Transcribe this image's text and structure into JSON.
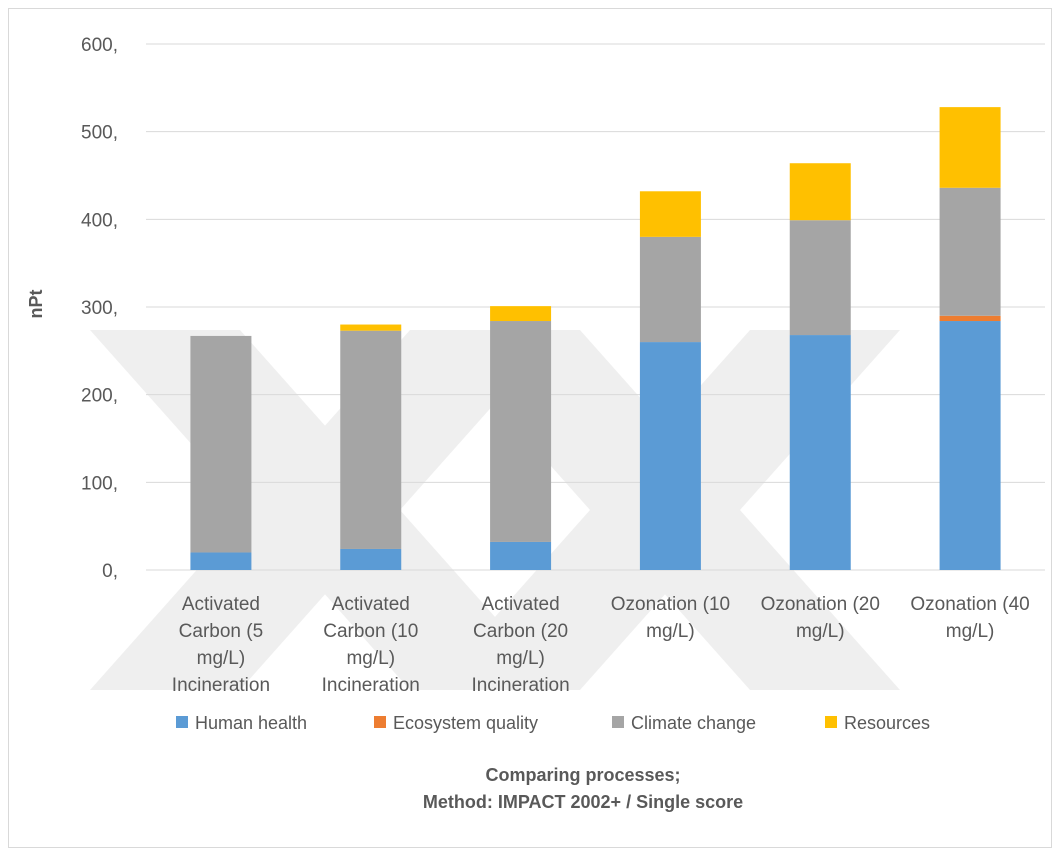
{
  "chart_data": {
    "type": "bar",
    "stacked": true,
    "title": [
      "Comparing processes;",
      "Method: IMPACT 2002+ / Single score"
    ],
    "xlabel": "",
    "ylabel": "nPt",
    "ylim": [
      0,
      600
    ],
    "yticks": [
      0,
      100,
      200,
      300,
      400,
      500,
      600
    ],
    "ytick_labels": [
      "0,",
      "100,",
      "200,",
      "300,",
      "400,",
      "500,",
      "600,"
    ],
    "grid": true,
    "legend_position": "bottom",
    "categories": [
      [
        "Activated",
        "Carbon (5",
        "mg/L)",
        "Incineration"
      ],
      [
        "Activated",
        "Carbon (10",
        "mg/L)",
        "Incineration"
      ],
      [
        "Activated",
        "Carbon (20",
        "mg/L)",
        "Incineration"
      ],
      [
        "Ozonation (10",
        "mg/L)"
      ],
      [
        "Ozonation (20",
        "mg/L)"
      ],
      [
        "Ozonation (40",
        "mg/L)"
      ]
    ],
    "series": [
      {
        "name": "Human health",
        "color": "#5b9bd5",
        "values": [
          20,
          24,
          32,
          260,
          268,
          284
        ]
      },
      {
        "name": "Ecosystem quality",
        "color": "#ed7d31",
        "values": [
          0,
          0,
          0,
          0,
          0,
          6
        ]
      },
      {
        "name": "Climate change",
        "color": "#a5a5a5",
        "values": [
          247,
          249,
          252,
          120,
          131,
          146
        ]
      },
      {
        "name": "Resources",
        "color": "#ffc000",
        "values": [
          0,
          7,
          17,
          52,
          65,
          92
        ]
      }
    ]
  }
}
